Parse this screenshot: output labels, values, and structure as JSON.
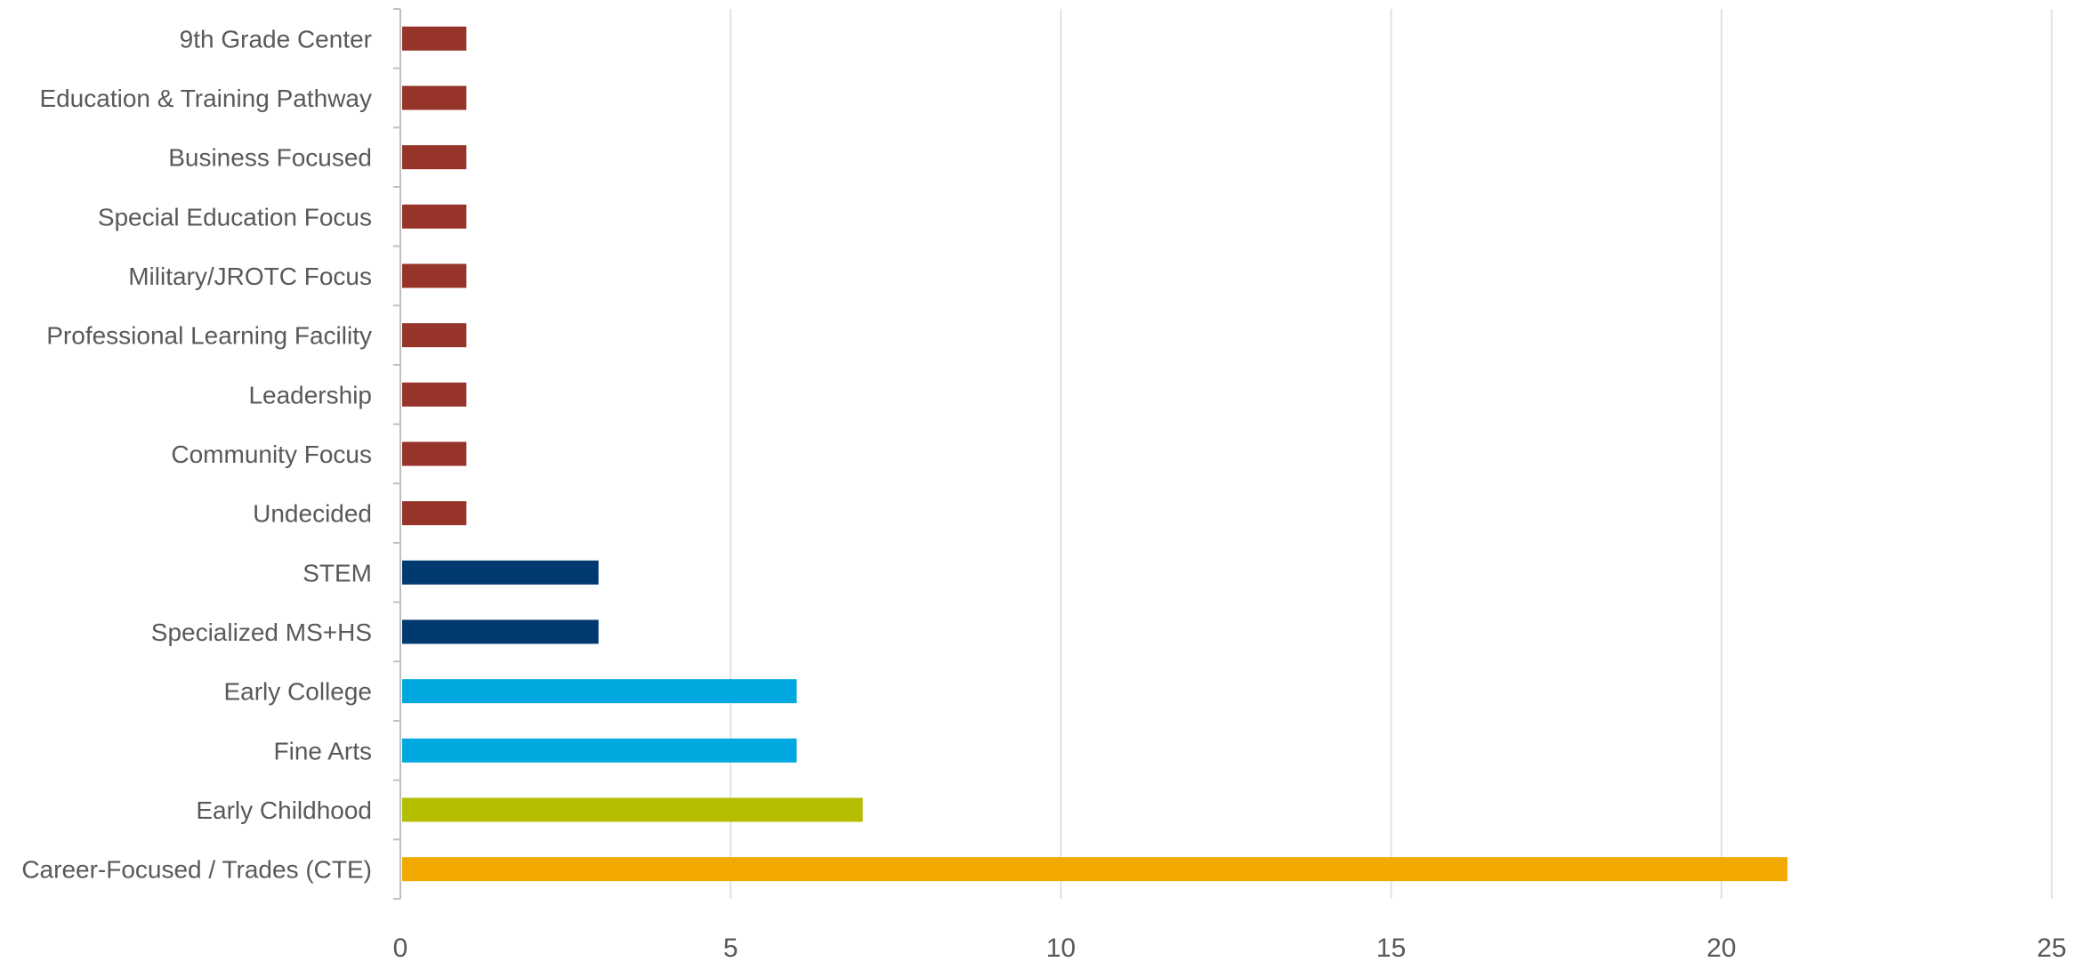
{
  "chart_data": {
    "type": "bar",
    "orientation": "horizontal",
    "title": "",
    "xlabel": "",
    "ylabel": "",
    "xlim": [
      0,
      25
    ],
    "x_ticks": [
      "0",
      "5",
      "10",
      "15",
      "20",
      "25"
    ],
    "grid": "vertical",
    "legend": "none",
    "categories": [
      "9th Grade Center",
      "Education & Training Pathway",
      "Business Focused",
      "Special Education Focus",
      "Military/JROTC Focus",
      "Professional Learning Facility",
      "Leadership",
      "Community Focus",
      "Undecided",
      "STEM",
      "Specialized MS+HS",
      "Early College",
      "Fine Arts",
      "Early Childhood",
      "Career-Focused / Trades (CTE)"
    ],
    "values": [
      1,
      1,
      1,
      1,
      1,
      1,
      1,
      1,
      1,
      3,
      3,
      6,
      6,
      7,
      21
    ],
    "bar_colors": [
      "#973429",
      "#973429",
      "#973429",
      "#973429",
      "#973429",
      "#973429",
      "#973429",
      "#973429",
      "#973429",
      "#003a70",
      "#003a70",
      "#00a8e0",
      "#00a8e0",
      "#b5bd00",
      "#f2a900"
    ]
  },
  "colors": {
    "gridline": "#d9d9d9",
    "axis_line": "#bfbfbf",
    "text": "#595959"
  }
}
